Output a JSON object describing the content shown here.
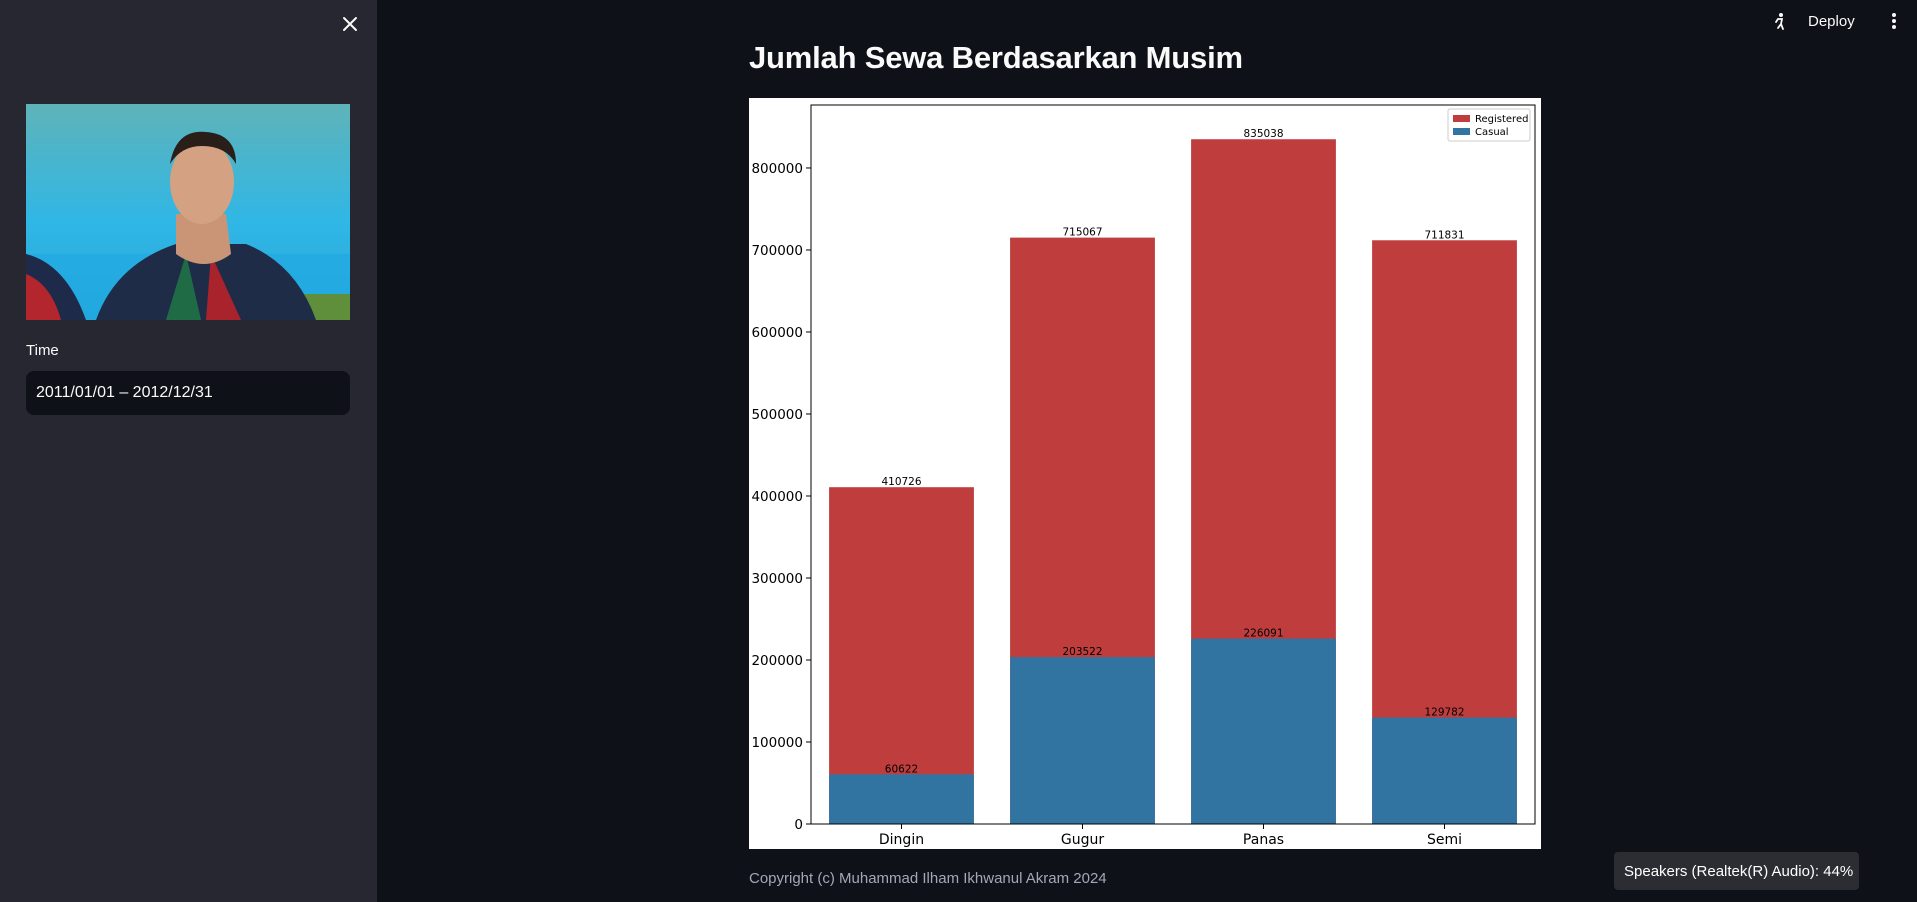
{
  "sidebar": {
    "close_icon": "close-icon",
    "photo_desc_icon": "profile-photo",
    "time_label": "Time",
    "date_range_value": "2011/01/01 – 2012/12/31"
  },
  "toolbar": {
    "running_icon": "running-man-icon",
    "deploy_label": "Deploy",
    "menu_icon": "kebab-menu-icon"
  },
  "main": {
    "title": "Jumlah Sewa Berdasarkan Musim",
    "footer": "Copyright (c) Muhammad Ilham Ikhwanul Akram 2024"
  },
  "toast": {
    "text": "Speakers (Realtek(R) Audio): 44%"
  },
  "chart_data": {
    "type": "bar",
    "stacking": "overlay",
    "categories": [
      "Dingin",
      "Gugur",
      "Panas",
      "Semi"
    ],
    "series": [
      {
        "name": "Registered",
        "color": "#c03d3e",
        "values": [
          410726,
          715067,
          835038,
          711831
        ]
      },
      {
        "name": "Casual",
        "color": "#3274a1",
        "values": [
          60622,
          203522,
          226091,
          129782
        ]
      }
    ],
    "ylim": [
      0,
      876790
    ],
    "yticks": [
      0,
      100000,
      200000,
      300000,
      400000,
      500000,
      600000,
      700000,
      800000
    ],
    "legend": "top-right",
    "grid": false,
    "title": "",
    "xlabel": "",
    "ylabel": ""
  }
}
